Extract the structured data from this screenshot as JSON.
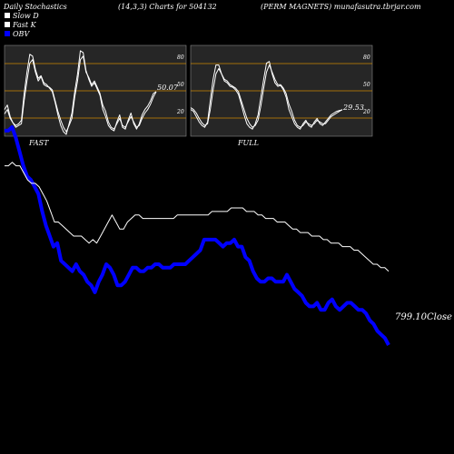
{
  "header": {
    "left": "Daily Stochastics",
    "middle": "(14,3,3) Charts for 504132",
    "right": "(PERM MAGNETS) munafasutra.tbrjar.com"
  },
  "legend": [
    {
      "label": "Slow  D",
      "swatch": "#ffffff"
    },
    {
      "label": "Fast K",
      "swatch": "#ffffff"
    },
    {
      "label": "OBV",
      "swatch": "#0000ff"
    }
  ],
  "colors": {
    "background": "#000000",
    "panel": "#262626",
    "band": "#cc8800",
    "obv": "#0000ff",
    "price": "#ffffff"
  },
  "chart_data": [
    {
      "type": "line",
      "panel": "FAST",
      "title": "FAST",
      "yticks": [
        80,
        50,
        20
      ],
      "ylim": [
        0,
        100
      ],
      "bands": [
        80,
        50,
        20
      ],
      "last_value": "50.07",
      "series": [
        {
          "values": [
            30,
            35,
            22,
            15,
            10,
            12,
            14,
            40,
            62,
            82,
            86,
            72,
            62,
            67,
            58,
            56,
            55,
            52,
            40,
            28,
            18,
            10,
            5,
            12,
            20,
            44,
            62,
            86,
            90,
            72,
            66,
            58,
            62,
            55,
            48,
            35,
            28,
            16,
            10,
            8,
            14,
            20,
            12,
            10,
            16,
            22,
            16,
            10,
            12,
            20,
            26,
            30,
            36,
            44,
            50
          ]
        },
        {
          "values": [
            25,
            30,
            20,
            15,
            12,
            14,
            18,
            48,
            72,
            92,
            90,
            75,
            65,
            68,
            60,
            58,
            54,
            50,
            38,
            24,
            12,
            5,
            2,
            14,
            26,
            50,
            70,
            96,
            94,
            74,
            64,
            56,
            60,
            53,
            46,
            30,
            22,
            12,
            8,
            6,
            16,
            24,
            10,
            8,
            18,
            26,
            14,
            8,
            14,
            24,
            30,
            34,
            40,
            48,
            50.07
          ]
        }
      ]
    },
    {
      "type": "line",
      "panel": "FULL",
      "title": "FULL",
      "yticks": [
        80,
        50,
        20
      ],
      "ylim": [
        0,
        100
      ],
      "bands": [
        80,
        50,
        20
      ],
      "last_value": "29.53",
      "series": [
        {
          "values": [
            32,
            30,
            26,
            20,
            15,
            12,
            14,
            30,
            52,
            70,
            76,
            70,
            64,
            62,
            58,
            56,
            54,
            50,
            40,
            30,
            20,
            14,
            10,
            12,
            18,
            34,
            54,
            72,
            80,
            72,
            64,
            58,
            58,
            54,
            48,
            36,
            28,
            18,
            12,
            10,
            12,
            16,
            14,
            12,
            14,
            18,
            16,
            14,
            14,
            18,
            22,
            24,
            26,
            28,
            30
          ]
        },
        {
          "values": [
            30,
            28,
            22,
            16,
            12,
            10,
            16,
            40,
            64,
            80,
            80,
            70,
            62,
            60,
            56,
            55,
            52,
            47,
            36,
            24,
            14,
            10,
            8,
            14,
            24,
            44,
            64,
            82,
            84,
            70,
            60,
            56,
            57,
            52,
            44,
            30,
            22,
            14,
            10,
            8,
            14,
            18,
            12,
            10,
            16,
            20,
            14,
            12,
            16,
            20,
            24,
            26,
            28,
            29,
            29.53
          ]
        }
      ]
    },
    {
      "type": "line",
      "panel": "main",
      "title": "",
      "last_label": "799.10Close",
      "series": [
        {
          "name": "OBV",
          "values": [
            37,
            37,
            38,
            35,
            31,
            27,
            24,
            23,
            21,
            19,
            14,
            10,
            7,
            4,
            5,
            0,
            -1,
            -2,
            -3,
            -1,
            -3,
            -4,
            -6,
            -7,
            -9,
            -6,
            -4,
            -1,
            -2,
            -4,
            -7,
            -7,
            -6,
            -4,
            -2,
            -2,
            -3,
            -3,
            -2,
            -2,
            -1,
            -1,
            -2,
            -2,
            -2,
            -1,
            -1,
            -1,
            -1,
            0,
            1,
            2,
            3,
            6,
            6,
            6,
            6,
            5,
            4,
            5,
            5,
            6,
            4,
            4,
            1,
            0,
            -3,
            -5,
            -6,
            -6,
            -5,
            -5,
            -6,
            -6,
            -6,
            -4,
            -6,
            -8,
            -9,
            -10,
            -12,
            -13,
            -13,
            -12,
            -14,
            -14,
            -12,
            -11,
            -13,
            -14,
            -13,
            -12,
            -12,
            -13,
            -14,
            -14,
            -15,
            -17,
            -18,
            -20,
            -21,
            -22,
            -24
          ]
        },
        {
          "name": "Close",
          "values": [
            27,
            27,
            28,
            27,
            27,
            25,
            23,
            22,
            22,
            21,
            19,
            17,
            14,
            11,
            11,
            10,
            9,
            8,
            7,
            7,
            7,
            6,
            5,
            6,
            5,
            7,
            9,
            11,
            13,
            11,
            9,
            9,
            11,
            12,
            13,
            13,
            12,
            12,
            12,
            12,
            12,
            12,
            12,
            12,
            12,
            13,
            13,
            13,
            13,
            13,
            13,
            13,
            13,
            13,
            14,
            14,
            14,
            14,
            14,
            15,
            15,
            15,
            15,
            14,
            14,
            14,
            13,
            13,
            12,
            12,
            12,
            11,
            11,
            11,
            10,
            9,
            9,
            8,
            8,
            8,
            7,
            7,
            7,
            6,
            6,
            5,
            5,
            5,
            4,
            4,
            4,
            3,
            3,
            2,
            1,
            0,
            -1,
            -1,
            -2,
            -2,
            -3
          ]
        }
      ]
    }
  ]
}
